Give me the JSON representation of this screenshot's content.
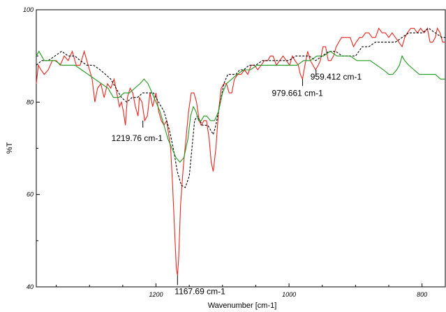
{
  "chart_data": {
    "type": "line",
    "xlabel": "Wavenumber [cm-1]",
    "ylabel": "%T",
    "xlim": [
      1380,
      765
    ],
    "ylim": [
      40,
      100
    ],
    "x_ticks": [
      1200,
      1000,
      800
    ],
    "y_ticks": [
      40,
      60,
      80,
      100
    ],
    "grid": false,
    "series": [
      {
        "style": "solid",
        "color": "#e8261f",
        "points": [
          [
            1380,
            84
          ],
          [
            1377,
            88
          ],
          [
            1373,
            87
          ],
          [
            1368,
            86
          ],
          [
            1362,
            87
          ],
          [
            1356,
            89
          ],
          [
            1350,
            89
          ],
          [
            1344,
            88
          ],
          [
            1338,
            90
          ],
          [
            1332,
            89
          ],
          [
            1326,
            91
          ],
          [
            1320,
            88
          ],
          [
            1314,
            88
          ],
          [
            1308,
            91
          ],
          [
            1302,
            88
          ],
          [
            1296,
            85
          ],
          [
            1292,
            80
          ],
          [
            1288,
            83
          ],
          [
            1283,
            84
          ],
          [
            1278,
            81
          ],
          [
            1273,
            84
          ],
          [
            1268,
            83
          ],
          [
            1263,
            85
          ],
          [
            1259,
            82
          ],
          [
            1255,
            79
          ],
          [
            1252,
            80
          ],
          [
            1249,
            78
          ],
          [
            1246,
            75
          ],
          [
            1243,
            81
          ],
          [
            1239,
            83
          ],
          [
            1235,
            82
          ],
          [
            1231,
            79
          ],
          [
            1227,
            77
          ],
          [
            1225,
            81
          ],
          [
            1221,
            80
          ],
          [
            1217,
            76
          ],
          [
            1213,
            77
          ],
          [
            1209,
            82
          ],
          [
            1205,
            79
          ],
          [
            1200,
            82
          ],
          [
            1196,
            78
          ],
          [
            1192,
            76
          ],
          [
            1188,
            75
          ],
          [
            1184,
            76
          ],
          [
            1181,
            73
          ],
          [
            1178,
            70
          ],
          [
            1175,
            62
          ],
          [
            1172,
            52
          ],
          [
            1169.5,
            44
          ],
          [
            1167.7,
            42.5
          ],
          [
            1166,
            46
          ],
          [
            1163,
            58
          ],
          [
            1159,
            66
          ],
          [
            1155,
            72
          ],
          [
            1151,
            78
          ],
          [
            1147,
            82
          ],
          [
            1143,
            82
          ],
          [
            1139,
            80
          ],
          [
            1135,
            76
          ],
          [
            1132,
            75
          ],
          [
            1128,
            76
          ],
          [
            1124,
            76
          ],
          [
            1120,
            72
          ],
          [
            1117,
            67
          ],
          [
            1114,
            65
          ],
          [
            1110,
            70
          ],
          [
            1106,
            78
          ],
          [
            1102,
            83
          ],
          [
            1098,
            84
          ],
          [
            1094,
            84
          ],
          [
            1090,
            82
          ],
          [
            1086,
            82
          ],
          [
            1082,
            85
          ],
          [
            1077,
            86
          ],
          [
            1072,
            86
          ],
          [
            1067,
            87
          ],
          [
            1062,
            86
          ],
          [
            1057,
            88
          ],
          [
            1052,
            88
          ],
          [
            1047,
            87
          ],
          [
            1042,
            88
          ],
          [
            1037,
            89
          ],
          [
            1032,
            89
          ],
          [
            1028,
            90
          ],
          [
            1024,
            90
          ],
          [
            1019,
            88
          ],
          [
            1014,
            89
          ],
          [
            1009,
            90
          ],
          [
            1004,
            89
          ],
          [
            999,
            88
          ],
          [
            995,
            90
          ],
          [
            991,
            89
          ],
          [
            986,
            88
          ],
          [
            983,
            86
          ],
          [
            979.7,
            85
          ],
          [
            976,
            88
          ],
          [
            972,
            91
          ],
          [
            968,
            89
          ],
          [
            964,
            88
          ],
          [
            960,
            87
          ],
          [
            956,
            88
          ],
          [
            953,
            89
          ],
          [
            949,
            92
          ],
          [
            945,
            92
          ],
          [
            941,
            89
          ],
          [
            937,
            89
          ],
          [
            933,
            90
          ],
          [
            929,
            92
          ],
          [
            925,
            93
          ],
          [
            921,
            94
          ],
          [
            917,
            94
          ],
          [
            913,
            94
          ],
          [
            908,
            94
          ],
          [
            903,
            92
          ],
          [
            899,
            93
          ],
          [
            894,
            94
          ],
          [
            890,
            94
          ],
          [
            885,
            95
          ],
          [
            880,
            95
          ],
          [
            875,
            94
          ],
          [
            870,
            94
          ],
          [
            865,
            96
          ],
          [
            860,
            95
          ],
          [
            855,
            95
          ],
          [
            850,
            94
          ],
          [
            845,
            95
          ],
          [
            840,
            94
          ],
          [
            835,
            93
          ],
          [
            830,
            92
          ],
          [
            826,
            94
          ],
          [
            822,
            95
          ],
          [
            817,
            96
          ],
          [
            812,
            96
          ],
          [
            807,
            95
          ],
          [
            802,
            96
          ],
          [
            797,
            95
          ],
          [
            792,
            96
          ],
          [
            788,
            93
          ],
          [
            784,
            93
          ],
          [
            780,
            94
          ],
          [
            777,
            96
          ],
          [
            773,
            95
          ],
          [
            769,
            93
          ],
          [
            765,
            93
          ]
        ]
      },
      {
        "style": "dashed",
        "color": "#000000",
        "points": [
          [
            1380,
            88
          ],
          [
            1372,
            89
          ],
          [
            1362,
            89
          ],
          [
            1352,
            90
          ],
          [
            1342,
            91
          ],
          [
            1332,
            90
          ],
          [
            1322,
            90
          ],
          [
            1314,
            89
          ],
          [
            1304,
            88
          ],
          [
            1294,
            88
          ],
          [
            1284,
            87
          ],
          [
            1276,
            86
          ],
          [
            1268,
            85
          ],
          [
            1260,
            83
          ],
          [
            1252,
            81
          ],
          [
            1244,
            80
          ],
          [
            1236,
            81
          ],
          [
            1228,
            81
          ],
          [
            1220,
            82
          ],
          [
            1212,
            82
          ],
          [
            1204,
            82
          ],
          [
            1196,
            80
          ],
          [
            1188,
            78
          ],
          [
            1180,
            74
          ],
          [
            1174,
            70
          ],
          [
            1168,
            65
          ],
          [
            1162,
            62
          ],
          [
            1156,
            61.5
          ],
          [
            1150,
            64
          ],
          [
            1146,
            70
          ],
          [
            1142,
            76
          ],
          [
            1138,
            77
          ],
          [
            1134,
            76
          ],
          [
            1130,
            75
          ],
          [
            1126,
            75
          ],
          [
            1122,
            75
          ],
          [
            1118,
            74
          ],
          [
            1114,
            73
          ],
          [
            1110,
            75
          ],
          [
            1106,
            78
          ],
          [
            1102,
            81
          ],
          [
            1098,
            84
          ],
          [
            1092,
            86
          ],
          [
            1086,
            86
          ],
          [
            1080,
            86
          ],
          [
            1074,
            87
          ],
          [
            1068,
            87
          ],
          [
            1060,
            88
          ],
          [
            1050,
            88
          ],
          [
            1040,
            89
          ],
          [
            1030,
            89
          ],
          [
            1020,
            89
          ],
          [
            1010,
            89
          ],
          [
            1000,
            89
          ],
          [
            990,
            90
          ],
          [
            980,
            90
          ],
          [
            970,
            90
          ],
          [
            960,
            89
          ],
          [
            950,
            90
          ],
          [
            940,
            91
          ],
          [
            930,
            91
          ],
          [
            920,
            90
          ],
          [
            910,
            90
          ],
          [
            900,
            90
          ],
          [
            890,
            92
          ],
          [
            880,
            92
          ],
          [
            870,
            93
          ],
          [
            860,
            93
          ],
          [
            850,
            93
          ],
          [
            840,
            93
          ],
          [
            830,
            94
          ],
          [
            820,
            95
          ],
          [
            810,
            95
          ],
          [
            800,
            95
          ],
          [
            790,
            96
          ],
          [
            780,
            95
          ],
          [
            770,
            94
          ],
          [
            765,
            94
          ]
        ]
      },
      {
        "style": "solid",
        "color": "#1f9a1f",
        "points": [
          [
            1380,
            90
          ],
          [
            1376,
            91
          ],
          [
            1372,
            90
          ],
          [
            1368,
            89
          ],
          [
            1362,
            89
          ],
          [
            1352,
            89
          ],
          [
            1342,
            88
          ],
          [
            1332,
            88
          ],
          [
            1322,
            88
          ],
          [
            1312,
            87
          ],
          [
            1302,
            86
          ],
          [
            1292,
            85
          ],
          [
            1282,
            84
          ],
          [
            1272,
            83
          ],
          [
            1264,
            81
          ],
          [
            1256,
            81
          ],
          [
            1248,
            82
          ],
          [
            1240,
            82
          ],
          [
            1232,
            83
          ],
          [
            1224,
            84
          ],
          [
            1218,
            85
          ],
          [
            1212,
            84
          ],
          [
            1206,
            82
          ],
          [
            1200,
            80
          ],
          [
            1194,
            78
          ],
          [
            1188,
            75
          ],
          [
            1182,
            72
          ],
          [
            1176,
            70
          ],
          [
            1170,
            68
          ],
          [
            1164,
            67
          ],
          [
            1158,
            68
          ],
          [
            1152,
            72
          ],
          [
            1148,
            77
          ],
          [
            1144,
            79
          ],
          [
            1140,
            78
          ],
          [
            1136,
            76
          ],
          [
            1132,
            76
          ],
          [
            1128,
            77
          ],
          [
            1124,
            77
          ],
          [
            1118,
            76
          ],
          [
            1112,
            76
          ],
          [
            1106,
            78
          ],
          [
            1100,
            82
          ],
          [
            1094,
            84
          ],
          [
            1086,
            85
          ],
          [
            1078,
            86
          ],
          [
            1068,
            87
          ],
          [
            1058,
            87
          ],
          [
            1048,
            88
          ],
          [
            1038,
            88
          ],
          [
            1028,
            88
          ],
          [
            1018,
            88
          ],
          [
            1008,
            88
          ],
          [
            998,
            88
          ],
          [
            988,
            88
          ],
          [
            978,
            89
          ],
          [
            968,
            89
          ],
          [
            958,
            90
          ],
          [
            948,
            90
          ],
          [
            938,
            91
          ],
          [
            928,
            90
          ],
          [
            918,
            90
          ],
          [
            908,
            90
          ],
          [
            898,
            89
          ],
          [
            888,
            89
          ],
          [
            878,
            89
          ],
          [
            868,
            88
          ],
          [
            858,
            87
          ],
          [
            850,
            86
          ],
          [
            844,
            86
          ],
          [
            838,
            87
          ],
          [
            834,
            88
          ],
          [
            830,
            90
          ],
          [
            826,
            89
          ],
          [
            820,
            88
          ],
          [
            812,
            87
          ],
          [
            804,
            86
          ],
          [
            796,
            86
          ],
          [
            788,
            86
          ],
          [
            780,
            86
          ],
          [
            772,
            85
          ],
          [
            765,
            85
          ]
        ]
      }
    ],
    "annotations": [
      {
        "text": "1219.76 cm-1",
        "x": 1219.76,
        "y": 76
      },
      {
        "text": "1167.69 cm-1",
        "x": 1167.69,
        "y": 42.5
      },
      {
        "text": "979.661 cm-1",
        "x": 979.661,
        "y": 85
      },
      {
        "text": "959.412 cm-1",
        "x": 959.412,
        "y": 87
      }
    ]
  }
}
